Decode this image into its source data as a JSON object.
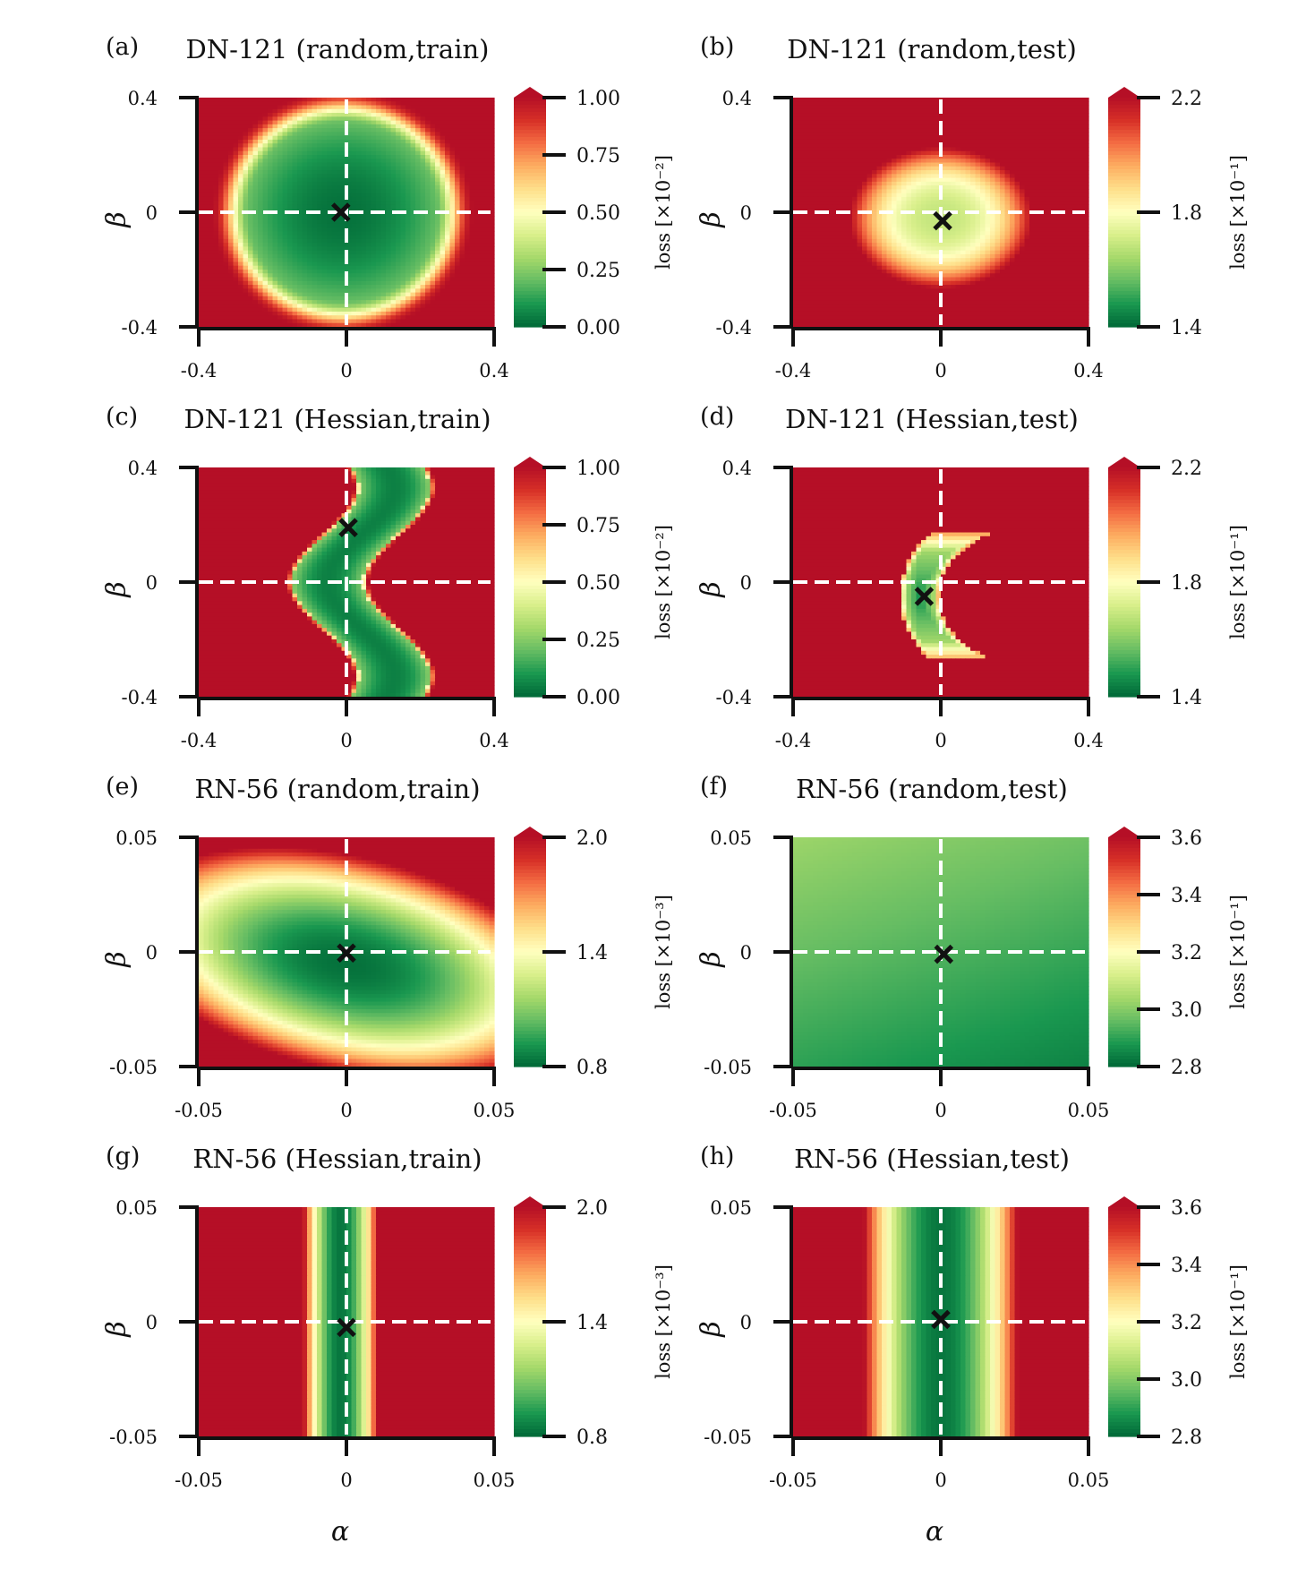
{
  "figure": {
    "x_axis_symbol": "α",
    "y_axis_symbol": "β"
  },
  "colormap": [
    "#006837",
    "#1a9850",
    "#66bd63",
    "#a6d96a",
    "#d9ef8b",
    "#ffffbf",
    "#fee08b",
    "#fdae61",
    "#f46d43",
    "#d73027",
    "#b50f26"
  ],
  "marker_color": "#111111",
  "guide_color": "#ffffff",
  "chart_data": [
    {
      "id": "a",
      "type": "heatmap",
      "panel_label": "(a)",
      "title": "DN-121 (random,train)",
      "xlabel": "α",
      "ylabel": "β",
      "xlim": [
        -0.4,
        0.4
      ],
      "ylim": [
        -0.4,
        0.4
      ],
      "xticks": [
        -0.4,
        0,
        0.4
      ],
      "xtick_labels": [
        "-0.4",
        "0",
        "0.4"
      ],
      "yticks": [
        -0.4,
        0,
        0.4
      ],
      "ytick_labels": [
        "-0.4",
        "0",
        "0.4"
      ],
      "colorbar": {
        "label": "loss [×10⁻²]",
        "vmin": 0.0,
        "vmax": 1.0,
        "ticks": [
          0.0,
          0.25,
          0.5,
          0.75,
          1.0
        ],
        "tick_labels": [
          "0.00",
          "0.25",
          "0.50",
          "0.75",
          "1.00"
        ]
      },
      "field": {
        "shape": "ring",
        "center": [
          -0.01,
          0.0
        ],
        "radii": [
          0.255,
          0.31
        ],
        "ring_width": 0.045
      },
      "minimum": [
        -0.015,
        0.0
      ]
    },
    {
      "id": "b",
      "type": "heatmap",
      "panel_label": "(b)",
      "title": "DN-121 (random,test)",
      "xlabel": "α",
      "ylabel": "β",
      "xlim": [
        -0.4,
        0.4
      ],
      "ylim": [
        -0.4,
        0.4
      ],
      "xticks": [
        -0.4,
        0,
        0.4
      ],
      "xtick_labels": [
        "-0.4",
        "0",
        "0.4"
      ],
      "yticks": [
        -0.4,
        0,
        0.4
      ],
      "ytick_labels": [
        "-0.4",
        "0",
        "0.4"
      ],
      "colorbar": {
        "label": "loss [×10⁻¹]",
        "vmin": 1.4,
        "vmax": 2.2,
        "ticks": [
          1.4,
          1.8,
          2.2
        ],
        "tick_labels": [
          "1.4",
          "1.8",
          "2.2"
        ]
      },
      "field": {
        "shape": "bowl",
        "center": [
          0.0,
          -0.02
        ],
        "radii": [
          0.26,
          0.26
        ],
        "power": 2.5
      },
      "minimum": [
        0.005,
        -0.03
      ]
    },
    {
      "id": "c",
      "type": "heatmap",
      "panel_label": "(c)",
      "title": "DN-121 (Hessian,train)",
      "xlabel": "α",
      "ylabel": "β",
      "xlim": [
        -0.4,
        0.4
      ],
      "ylim": [
        -0.4,
        0.4
      ],
      "xticks": [
        -0.4,
        0,
        0.4
      ],
      "xtick_labels": [
        "-0.4",
        "0",
        "0.4"
      ],
      "yticks": [
        -0.4,
        0,
        0.4
      ],
      "ytick_labels": [
        "-0.4",
        "0",
        "0.4"
      ],
      "colorbar": {
        "label": "loss [×10⁻²]",
        "vmin": 0.0,
        "vmax": 1.0,
        "ticks": [
          0.0,
          0.25,
          0.5,
          0.75,
          1.0
        ],
        "tick_labels": [
          "0.00",
          "0.25",
          "0.50",
          "0.75",
          "1.00"
        ]
      },
      "field": {
        "shape": "curved_band",
        "curve": [
          0.04,
          -0.09,
          0.33
        ],
        "half_width": 0.095
      },
      "minimum": [
        0.005,
        0.19
      ]
    },
    {
      "id": "d",
      "type": "heatmap",
      "panel_label": "(d)",
      "title": "DN-121 (Hessian,test)",
      "xlabel": "α",
      "ylabel": "β",
      "xlim": [
        -0.4,
        0.4
      ],
      "ylim": [
        -0.4,
        0.4
      ],
      "xticks": [
        -0.4,
        0,
        0.4
      ],
      "xtick_labels": [
        "-0.4",
        "0",
        "0.4"
      ],
      "yticks": [
        -0.4,
        0,
        0.4
      ],
      "ytick_labels": [
        "-0.4",
        "0",
        "0.4"
      ],
      "colorbar": {
        "label": "loss [×10⁻¹]",
        "vmin": 1.4,
        "vmax": 2.2,
        "ticks": [
          1.4,
          1.8,
          2.2
        ],
        "tick_labels": [
          "1.4",
          "1.8",
          "2.2"
        ]
      },
      "field": {
        "shape": "crescent",
        "center": [
          0.23,
          -0.05
        ],
        "r_inner": 0.235,
        "r_outer": 0.34,
        "y_halfspan": 0.22
      },
      "minimum": [
        -0.045,
        -0.05
      ]
    },
    {
      "id": "e",
      "type": "heatmap",
      "panel_label": "(e)",
      "title": "RN-56 (random,train)",
      "xlabel": "α",
      "ylabel": "β",
      "xlim": [
        -0.05,
        0.05
      ],
      "ylim": [
        -0.05,
        0.05
      ],
      "xticks": [
        -0.05,
        0,
        0.05
      ],
      "xtick_labels": [
        "-0.05",
        "0",
        "0.05"
      ],
      "yticks": [
        -0.05,
        0,
        0.05
      ],
      "ytick_labels": [
        "-0.05",
        "0",
        "0.05"
      ],
      "colorbar": {
        "label": "loss [×10⁻³]",
        "vmin": 0.8,
        "vmax": 2.0,
        "ticks": [
          0.8,
          1.4,
          2.0
        ],
        "tick_labels": [
          "0.8",
          "1.4",
          "2.0"
        ]
      },
      "field": {
        "shape": "tilted_bowl",
        "center": [
          0.0,
          -0.005
        ],
        "radii": [
          0.072,
          0.042
        ],
        "angle_deg": -20,
        "power": 2.2,
        "base": 0.82
      },
      "minimum": [
        0.0,
        -0.0005
      ]
    },
    {
      "id": "f",
      "type": "heatmap",
      "panel_label": "(f)",
      "title": "RN-56 (random,test)",
      "xlabel": "α",
      "ylabel": "β",
      "xlim": [
        -0.05,
        0.05
      ],
      "ylim": [
        -0.05,
        0.05
      ],
      "xticks": [
        -0.05,
        0,
        0.05
      ],
      "xtick_labels": [
        "-0.05",
        "0",
        "0.05"
      ],
      "yticks": [
        -0.05,
        0,
        0.05
      ],
      "ytick_labels": [
        "-0.05",
        "0",
        "0.05"
      ],
      "colorbar": {
        "label": "loss [×10⁻¹]",
        "vmin": 2.8,
        "vmax": 3.6,
        "ticks": [
          2.8,
          3.0,
          3.2,
          3.4,
          3.6
        ],
        "tick_labels": [
          "2.8",
          "3.0",
          "3.2",
          "3.4",
          "3.6"
        ]
      },
      "field": {
        "shape": "plane",
        "base": 0.17,
        "grad": [
          -0.7,
          1.6
        ]
      },
      "minimum": [
        0.001,
        -0.001
      ]
    },
    {
      "id": "g",
      "type": "heatmap",
      "panel_label": "(g)",
      "title": "RN-56 (Hessian,train)",
      "xlabel": "α",
      "ylabel": "β",
      "xlim": [
        -0.05,
        0.05
      ],
      "ylim": [
        -0.05,
        0.05
      ],
      "xticks": [
        -0.05,
        0,
        0.05
      ],
      "xtick_labels": [
        "-0.05",
        "0",
        "0.05"
      ],
      "yticks": [
        -0.05,
        0,
        0.05
      ],
      "ytick_labels": [
        "-0.05",
        "0",
        "0.05"
      ],
      "colorbar": {
        "label": "loss [×10⁻³]",
        "vmin": 0.8,
        "vmax": 2.0,
        "ticks": [
          0.8,
          1.4,
          2.0
        ],
        "tick_labels": [
          "0.8",
          "1.4",
          "2.0"
        ]
      },
      "field": {
        "shape": "vband",
        "center": -0.002,
        "half_width": 0.0125,
        "power": 2.0
      },
      "minimum": [
        0.0,
        -0.0025
      ]
    },
    {
      "id": "h",
      "type": "heatmap",
      "panel_label": "(h)",
      "title": "RN-56 (Hessian,test)",
      "xlabel": "α",
      "ylabel": "β",
      "xlim": [
        -0.05,
        0.05
      ],
      "ylim": [
        -0.05,
        0.05
      ],
      "xticks": [
        -0.05,
        0,
        0.05
      ],
      "xtick_labels": [
        "-0.05",
        "0",
        "0.05"
      ],
      "yticks": [
        -0.05,
        0,
        0.05
      ],
      "ytick_labels": [
        "-0.05",
        "0",
        "0.05"
      ],
      "colorbar": {
        "label": "loss [×10⁻¹]",
        "vmin": 2.8,
        "vmax": 3.6,
        "ticks": [
          2.8,
          3.0,
          3.2,
          3.4,
          3.6
        ],
        "tick_labels": [
          "2.8",
          "3.0",
          "3.2",
          "3.4",
          "3.6"
        ]
      },
      "field": {
        "shape": "vband",
        "center": 0.0,
        "half_width": 0.026,
        "power": 2.0
      },
      "minimum": [
        0.0,
        0.001
      ]
    }
  ]
}
